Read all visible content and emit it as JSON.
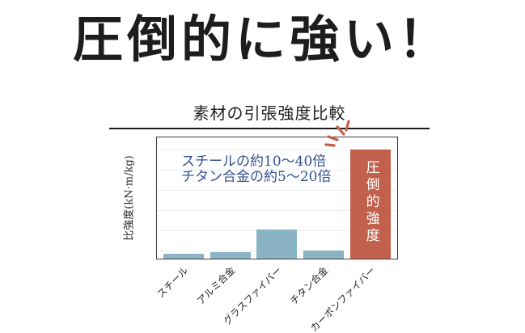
{
  "headline": {
    "text": "圧倒的に強い！"
  },
  "chart": {
    "title": "素材の引張強度比較",
    "y_axis_label": "比強度(kN·m/kg)",
    "annotation": {
      "line1": "スチールの約10～40倍",
      "line2": "チタン合金の約5～20倍"
    },
    "highlight_label": "圧倒的強度"
  },
  "colors": {
    "bar_teal": "#8ab3c3",
    "bar_orange": "#c2614b",
    "annotation_blue": "#33508f",
    "sparkle_red": "#c4604a",
    "gridline": "#e7edf2",
    "text_black": "#1c1c1c"
  },
  "chart_data": {
    "type": "bar",
    "title": "素材の引張強度比較",
    "xlabel": "",
    "ylabel": "比強度(kN·m/kg)",
    "categories": [
      "スチール",
      "アルミ合金",
      "グラスファイバー",
      "チタン合金",
      "カーボンファイバー"
    ],
    "values_relative_to_steel": [
      1,
      1.4,
      6,
      1.6,
      22.5
    ],
    "bar_height_percent": [
      4,
      5.5,
      24,
      6.5,
      90
    ],
    "bar_colors": [
      "#8ab3c3",
      "#8ab3c3",
      "#8ab3c3",
      "#8ab3c3",
      "#c2614b"
    ],
    "highlight_index": 4,
    "highlight_label": "圧倒的強度",
    "y_ticks": [],
    "x_tick_rotation": 45,
    "grid": true,
    "legend": "none",
    "annotations": [
      "スチールの約10～40倍",
      "チタン合金の約5～20倍",
      "圧倒的強度"
    ]
  }
}
